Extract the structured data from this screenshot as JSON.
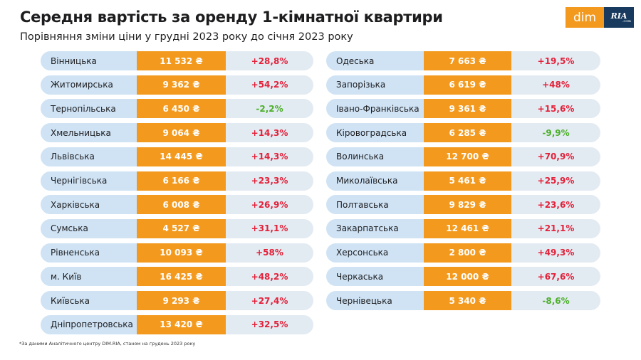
{
  "title": "Середня вартість за оренду 1-кімнатної квартири",
  "subtitle": "Порівняння зміни ціни у грудні 2023 року до січня 2023 року",
  "logo": {
    "dim": "dim",
    "ria": "RIA",
    "com": ".com"
  },
  "colors": {
    "orange": "#f39a1e",
    "name_bg": "#cfe3f5",
    "change_bg": "#e3ebf2",
    "increase": "#e3213a",
    "decrease": "#4caf2a"
  },
  "left": [
    {
      "region": "Вінницька",
      "price": "11 532 ₴",
      "change": "+28,8%"
    },
    {
      "region": "Житомирська",
      "price": "9 362 ₴",
      "change": "+54,2%"
    },
    {
      "region": "Тернопільська",
      "price": "6 450 ₴",
      "change": "-2,2%"
    },
    {
      "region": "Хмельницька",
      "price": "9 064 ₴",
      "change": "+14,3%"
    },
    {
      "region": "Львівська",
      "price": "14 445 ₴",
      "change": "+14,3%"
    },
    {
      "region": "Чернігівська",
      "price": "6 166 ₴",
      "change": "+23,3%"
    },
    {
      "region": "Харківська",
      "price": "6 008 ₴",
      "change": "+26,9%"
    },
    {
      "region": "Сумська",
      "price": "4 527 ₴",
      "change": "+31,1%"
    },
    {
      "region": "Рівненська",
      "price": "10 093 ₴",
      "change": "+58%"
    },
    {
      "region": "м. Київ",
      "price": "16 425 ₴",
      "change": "+48,2%"
    },
    {
      "region": "Київська",
      "price": "9 293 ₴",
      "change": "+27,4%"
    },
    {
      "region": "Дніпропетровська",
      "price": "13 420 ₴",
      "change": "+32,5%"
    }
  ],
  "right": [
    {
      "region": "Одеська",
      "price": "7 663 ₴",
      "change": "+19,5%"
    },
    {
      "region": "Запорізька",
      "price": "6 619 ₴",
      "change": "+48%"
    },
    {
      "region": "Івано-Франківська",
      "price": "9 361 ₴",
      "change": "+15,6%"
    },
    {
      "region": "Кіровоградська",
      "price": "6 285 ₴",
      "change": "-9,9%"
    },
    {
      "region": "Волинська",
      "price": "12 700 ₴",
      "change": "+70,9%"
    },
    {
      "region": "Миколаївська",
      "price": "5 461 ₴",
      "change": "+25,9%"
    },
    {
      "region": "Полтавська",
      "price": "9 829 ₴",
      "change": "+23,6%"
    },
    {
      "region": "Закарпатська",
      "price": "12 461 ₴",
      "change": "+21,1%"
    },
    {
      "region": "Херсонська",
      "price": "2 800 ₴",
      "change": "+49,3%"
    },
    {
      "region": "Черкаська",
      "price": "12 000 ₴",
      "change": "+67,6%"
    },
    {
      "region": "Чернівецька",
      "price": "5 340 ₴",
      "change": "-8,6%"
    }
  ],
  "footnote": "*За даними Аналітичного центру DIM.RIA, станом на грудень 2023 року"
}
